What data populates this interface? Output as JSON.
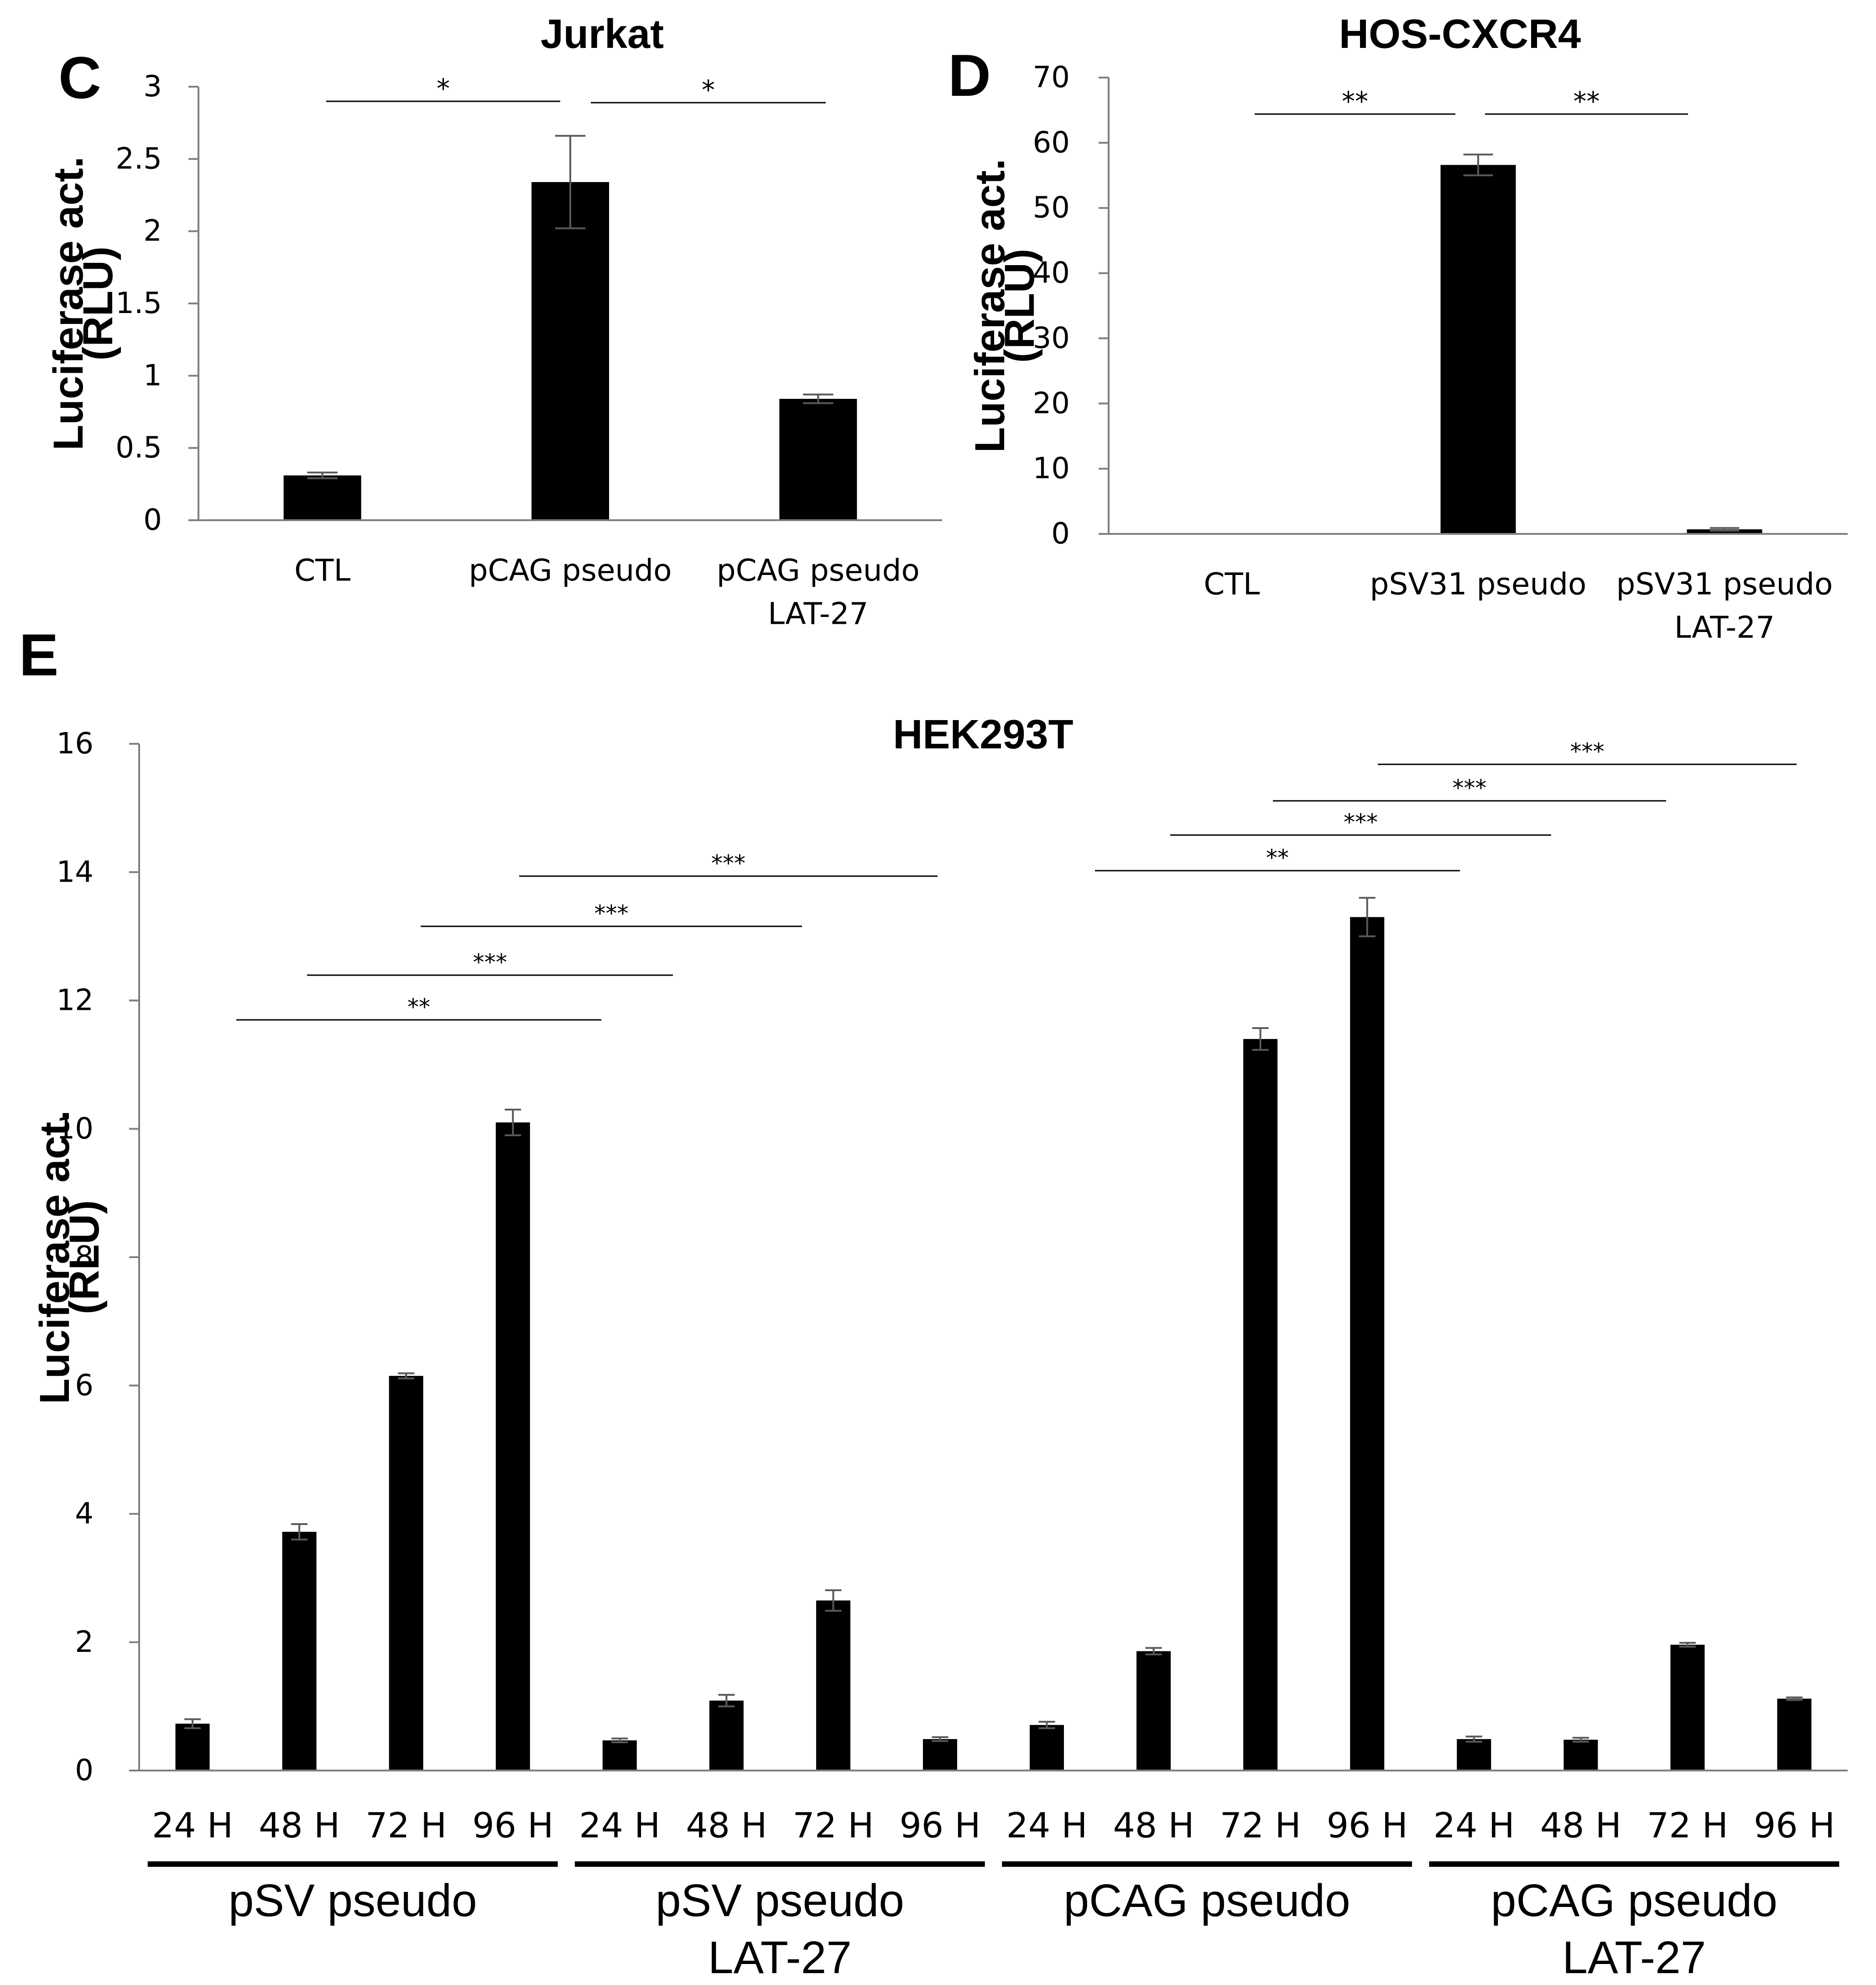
{
  "chart_data": [
    {
      "panel_letter": "C",
      "type": "bar",
      "title": "Jurkat",
      "ylabel_line1": "Luciferase act.",
      "ylabel_line2": "(RLU)",
      "ylim": [
        0,
        3
      ],
      "ytick_values": [
        0,
        0.5,
        1,
        1.5,
        2,
        2.5,
        3
      ],
      "ytick_labels": [
        "0",
        "0.5",
        "1",
        "1.5",
        "2",
        "2.5",
        "3"
      ],
      "categories": [
        [
          "CTL"
        ],
        [
          "pCAG pseudo"
        ],
        [
          "pCAG pseudo",
          "LAT-27"
        ]
      ],
      "values": [
        0.31,
        2.34,
        0.84
      ],
      "errors": [
        0.02,
        0.32,
        0.03
      ],
      "significance": [
        {
          "from": 0,
          "to": 1,
          "label": "*"
        },
        {
          "from": 1,
          "to": 2,
          "label": "*"
        }
      ],
      "colors": {
        "bar": "#000000",
        "axis": "#7f7f7f"
      }
    },
    {
      "panel_letter": "D",
      "type": "bar",
      "title": "HOS-CXCR4",
      "ylabel_line1": "Luciferase act.",
      "ylabel_line2": "(RLU)",
      "ylim": [
        0,
        70
      ],
      "ytick_values": [
        0,
        10,
        20,
        30,
        40,
        50,
        60,
        70
      ],
      "ytick_labels": [
        "0",
        "10",
        "20",
        "30",
        "40",
        "50",
        "60",
        "70"
      ],
      "categories": [
        [
          "CTL"
        ],
        [
          "pSV31 pseudo"
        ],
        [
          "pSV31 pseudo",
          "LAT-27"
        ]
      ],
      "values": [
        0.1,
        56.6,
        0.7
      ],
      "errors": [
        0,
        1.6,
        0.2
      ],
      "significance": [
        {
          "from": 0,
          "to": 1,
          "label": "**"
        },
        {
          "from": 1,
          "to": 2,
          "label": "**"
        }
      ],
      "colors": {
        "bar": "#000000",
        "axis": "#7f7f7f"
      }
    },
    {
      "panel_letter": "E",
      "type": "bar",
      "title": "HEK293T",
      "ylabel_line1": "Luciferase act.",
      "ylabel_line2": "(RLU)",
      "ylim": [
        0,
        16
      ],
      "ytick_values": [
        0,
        2,
        4,
        6,
        8,
        10,
        12,
        14,
        16
      ],
      "ytick_labels": [
        "0",
        "2",
        "4",
        "6",
        "8",
        "10",
        "12",
        "14",
        "16"
      ],
      "categories": [
        "24 H",
        "48 H",
        "72 H",
        "96 H",
        "24 H",
        "48 H",
        "72 H",
        "96 H",
        "24 H",
        "48 H",
        "72 H",
        "96 H",
        "24 H",
        "48 H",
        "72 H",
        "96 H"
      ],
      "values": [
        0.73,
        3.72,
        6.15,
        10.1,
        0.47,
        1.09,
        2.65,
        0.49,
        0.71,
        1.86,
        11.4,
        13.3,
        0.49,
        0.48,
        1.96,
        1.12
      ],
      "errors": [
        0.07,
        0.12,
        0.04,
        0.2,
        0.03,
        0.09,
        0.16,
        0.03,
        0.05,
        0.05,
        0.17,
        0.3,
        0.04,
        0.03,
        0.03,
        0.02
      ],
      "groups": [
        {
          "label": [
            "pSV pseudo"
          ],
          "start": 0,
          "end": 3
        },
        {
          "label": [
            "pSV pseudo",
            "LAT-27"
          ],
          "start": 4,
          "end": 7
        },
        {
          "label": [
            "pCAG pseudo"
          ],
          "start": 8,
          "end": 11
        },
        {
          "label": [
            "pCAG pseudo",
            "LAT-27"
          ],
          "start": 12,
          "end": 15
        }
      ],
      "significance": [
        {
          "from": 0,
          "to": 4,
          "label": "**"
        },
        {
          "from": 1,
          "to": 5,
          "label": "***"
        },
        {
          "from": 2,
          "to": 6,
          "label": "***"
        },
        {
          "from": 3,
          "to": 7,
          "label": "***"
        },
        {
          "from": 8,
          "to": 12,
          "label": "**"
        },
        {
          "from": 9,
          "to": 13,
          "label": "***"
        },
        {
          "from": 10,
          "to": 14,
          "label": "***"
        },
        {
          "from": 11,
          "to": 15,
          "label": "***"
        }
      ],
      "colors": {
        "bar": "#000000",
        "axis": "#7f7f7f"
      }
    }
  ]
}
